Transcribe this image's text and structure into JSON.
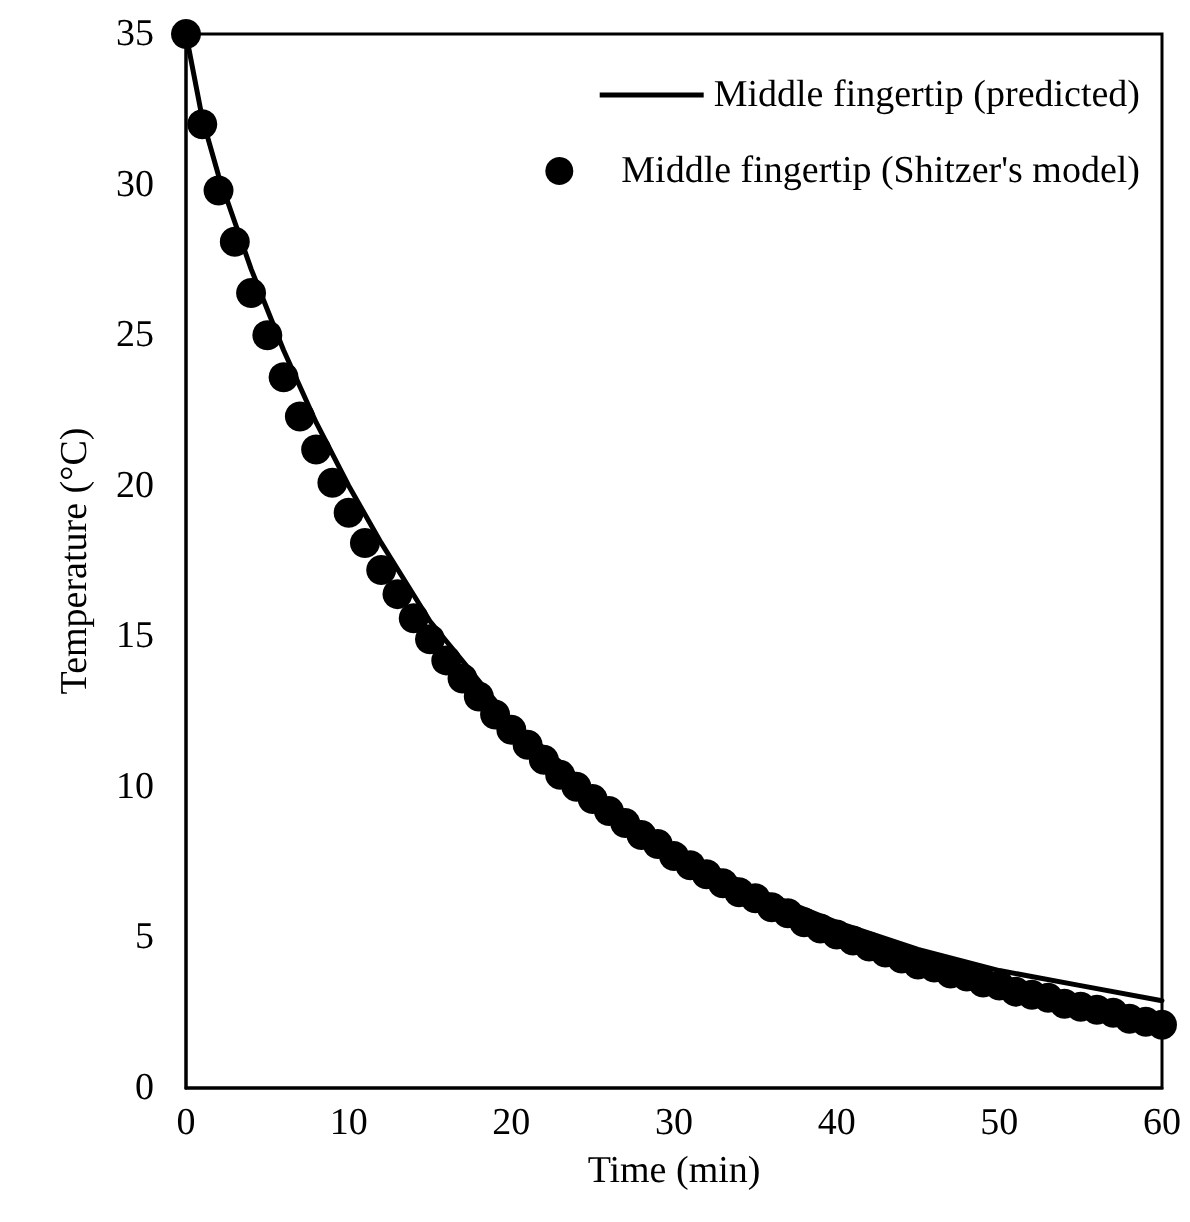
{
  "chart_data": {
    "type": "line",
    "xlabel": "Time (min)",
    "ylabel": "Temperature (°C)",
    "xlim": [
      0,
      60
    ],
    "xticks": [
      0,
      10,
      20,
      30,
      40,
      50,
      60
    ],
    "ylim": [
      0,
      35
    ],
    "yticks": [
      0,
      5,
      10,
      15,
      20,
      25,
      30,
      35
    ],
    "grid": false,
    "legend": "top right",
    "series": [
      {
        "name": "Middle fingertip (predicted)",
        "marker": "none",
        "line_style": "solid",
        "color": "#000000",
        "x": [
          0,
          1,
          2,
          4,
          6,
          8,
          10,
          12,
          15,
          20,
          25,
          30,
          35,
          40,
          45,
          50,
          55,
          60
        ],
        "values": [
          35,
          32.2,
          30.3,
          27.2,
          24.5,
          22.1,
          20.0,
          18.1,
          15.5,
          12.2,
          9.9,
          8.0,
          6.6,
          5.5,
          4.6,
          3.9,
          3.4,
          2.9
        ]
      },
      {
        "name": "Middle fingertip (Shitzer's model)",
        "type": "scatter",
        "marker": "circle",
        "color": "#000000",
        "x": [
          0,
          1,
          2,
          3,
          4,
          5,
          6,
          7,
          8,
          9,
          10,
          11,
          12,
          13,
          14,
          15,
          16,
          17,
          18,
          19,
          20,
          21,
          22,
          23,
          24,
          25,
          26,
          27,
          28,
          29,
          30,
          31,
          32,
          33,
          34,
          35,
          36,
          37,
          38,
          39,
          40,
          41,
          42,
          43,
          44,
          45,
          46,
          47,
          48,
          49,
          50,
          51,
          52,
          53,
          54,
          55,
          56,
          57,
          58,
          59,
          60
        ],
        "values": [
          35,
          32,
          29.8,
          28.1,
          26.4,
          25.0,
          23.6,
          22.3,
          21.2,
          20.1,
          19.1,
          18.1,
          17.2,
          16.4,
          15.6,
          14.9,
          14.2,
          13.6,
          13.0,
          12.4,
          11.9,
          11.4,
          10.9,
          10.4,
          10.0,
          9.6,
          9.2,
          8.8,
          8.4,
          8.1,
          7.7,
          7.4,
          7.1,
          6.8,
          6.5,
          6.3,
          6.0,
          5.8,
          5.5,
          5.3,
          5.1,
          4.9,
          4.7,
          4.5,
          4.3,
          4.1,
          4.0,
          3.8,
          3.7,
          3.5,
          3.4,
          3.2,
          3.1,
          3.0,
          2.8,
          2.7,
          2.6,
          2.5,
          2.3,
          2.2,
          2.1
        ]
      }
    ]
  }
}
